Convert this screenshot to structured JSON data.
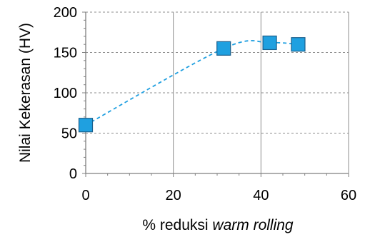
{
  "chart_data": {
    "type": "scatter",
    "title": "",
    "xlabel_prefix": "% reduksi ",
    "xlabel_italic": "warm rolling",
    "ylabel": "Nilai Kekerasan (HV)",
    "xlim": [
      0,
      60
    ],
    "ylim": [
      0,
      200
    ],
    "x_ticks": [
      0,
      20,
      40,
      60
    ],
    "y_ticks": [
      0,
      50,
      100,
      150,
      200
    ],
    "grid": true,
    "legend": "none",
    "trendline": "dashed-smooth",
    "colors": {
      "marker_fill": "#1fa0e0",
      "marker_stroke": "#1a5f8c",
      "trendline": "#1f9fe0",
      "grid": "#8c8c8c",
      "axis": "#7f7f7f"
    },
    "points": [
      {
        "x": 0,
        "y": 60
      },
      {
        "x": 31.5,
        "y": 155
      },
      {
        "x": 42,
        "y": 162
      },
      {
        "x": 48.5,
        "y": 160
      }
    ]
  }
}
